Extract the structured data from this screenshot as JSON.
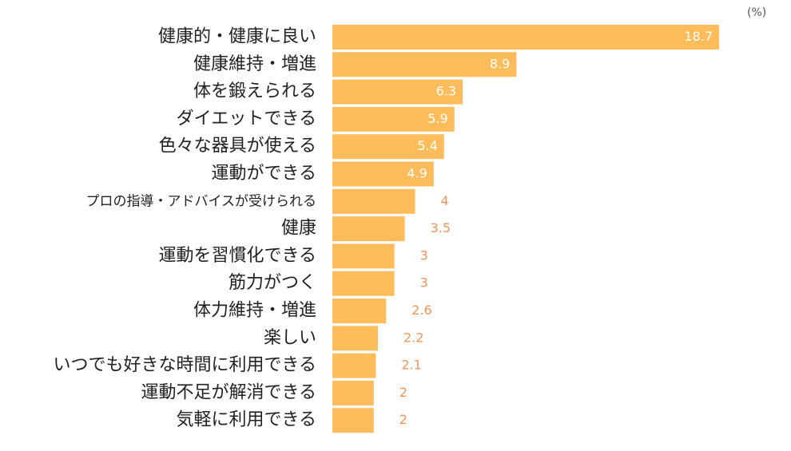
{
  "chart_data": {
    "type": "bar",
    "orientation": "horizontal",
    "unit": "(%)",
    "title": "",
    "xlabel": "",
    "ylabel": "",
    "xlim": [
      0,
      18.7
    ],
    "grid": false,
    "legend": "none",
    "bar_color": "#FFBC5A",
    "label_color": "#F0955A",
    "inside_label_color": "#FFFFFF",
    "categories": [
      "健康的・健康に良い",
      "健康維持・増進",
      "体を鍛えられる",
      "ダイエットできる",
      "色々な器具が使える",
      "運動ができる",
      "プロの指導・アドバイスが受けられる",
      "健康",
      "運動を習慣化できる",
      "筋力がつく",
      "体力維持・増進",
      "楽しい",
      "いつでも好きな時間に利用できる",
      "運動不足が解消できる",
      "気軽に利用できる"
    ],
    "values": [
      18.7,
      8.9,
      6.3,
      5.9,
      5.4,
      4.9,
      4,
      3.5,
      3,
      3,
      2.6,
      2.2,
      2.1,
      2,
      2
    ]
  }
}
